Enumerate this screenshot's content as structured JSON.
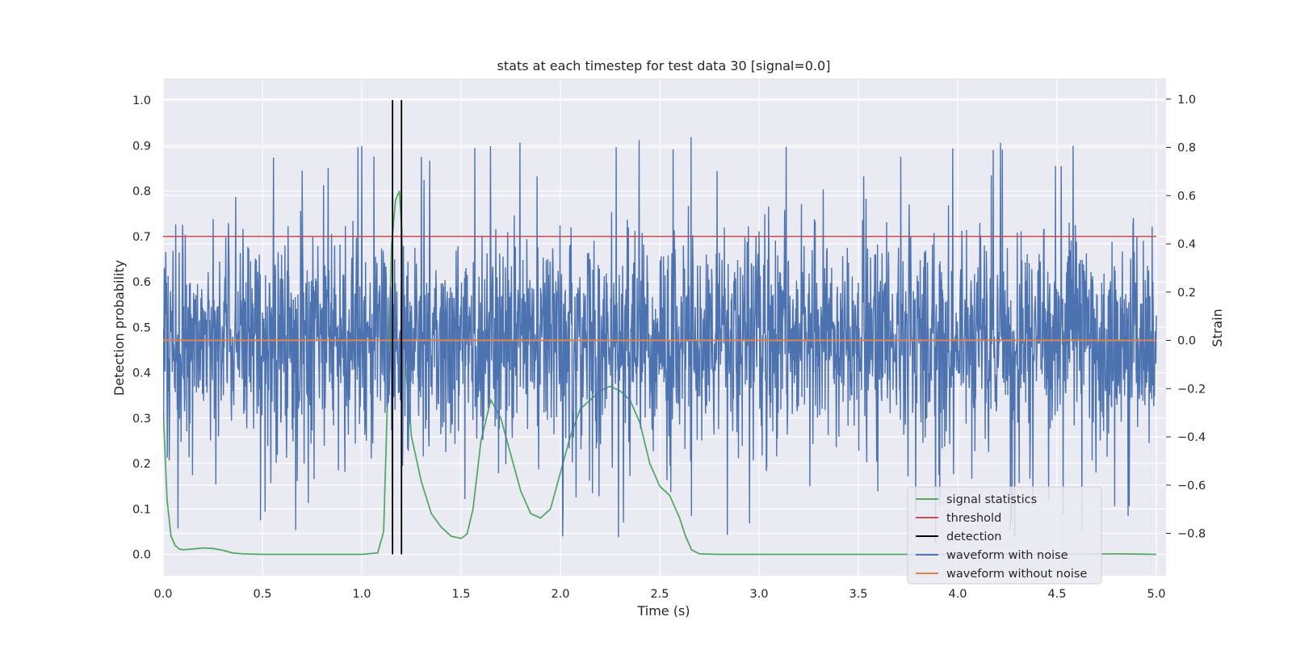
{
  "chart_data": {
    "type": "line",
    "title": "stats at each timestep for test data 30 [signal=0.0]",
    "xlabel": "Time (s)",
    "ylabel_left": "Detection probability",
    "ylabel_right": "Strain",
    "xlim": [
      0.0,
      5.05
    ],
    "ylim_left": [
      -0.05,
      1.05
    ],
    "ylim_right": [
      -0.93,
      1.09
    ],
    "x_ticks": [
      "0.0",
      "0.5",
      "1.0",
      "1.5",
      "2.0",
      "2.5",
      "3.0",
      "3.5",
      "4.0",
      "4.5",
      "5.0"
    ],
    "y_ticks_left": [
      "0.0",
      "0.1",
      "0.2",
      "0.3",
      "0.4",
      "0.5",
      "0.6",
      "0.7",
      "0.8",
      "0.9",
      "1.0"
    ],
    "y_ticks_right": [
      "−0.8",
      "−0.6",
      "−0.4",
      "−0.2",
      "0.0",
      "0.2",
      "0.4",
      "0.6",
      "0.8",
      "1.0"
    ],
    "grid": true,
    "legend_position": "lower-right",
    "series": [
      {
        "name": "signal statistics",
        "axis": "left",
        "color": "#55a868",
        "x": [
          0.0,
          0.02,
          0.04,
          0.06,
          0.08,
          0.1,
          0.15,
          0.2,
          0.25,
          0.3,
          0.35,
          0.4,
          0.5,
          0.7,
          0.9,
          1.0,
          1.08,
          1.11,
          1.13,
          1.15,
          1.17,
          1.19,
          1.2,
          1.22,
          1.25,
          1.3,
          1.35,
          1.4,
          1.45,
          1.5,
          1.53,
          1.56,
          1.6,
          1.65,
          1.7,
          1.75,
          1.8,
          1.85,
          1.9,
          1.95,
          2.0,
          2.05,
          2.1,
          2.15,
          2.2,
          2.25,
          2.3,
          2.35,
          2.4,
          2.45,
          2.5,
          2.55,
          2.6,
          2.63,
          2.66,
          2.7,
          2.8,
          3.0,
          3.5,
          4.0,
          4.5,
          4.8,
          5.0
        ],
        "y": [
          0.32,
          0.12,
          0.04,
          0.02,
          0.012,
          0.01,
          0.012,
          0.014,
          0.013,
          0.009,
          0.003,
          0.001,
          0.0,
          0.0,
          0.0,
          0.0,
          0.003,
          0.05,
          0.35,
          0.68,
          0.78,
          0.8,
          0.72,
          0.42,
          0.26,
          0.16,
          0.09,
          0.06,
          0.04,
          0.035,
          0.045,
          0.1,
          0.25,
          0.34,
          0.3,
          0.22,
          0.14,
          0.09,
          0.08,
          0.1,
          0.18,
          0.26,
          0.32,
          0.34,
          0.36,
          0.37,
          0.36,
          0.34,
          0.29,
          0.2,
          0.15,
          0.13,
          0.08,
          0.04,
          0.01,
          0.001,
          0.0,
          0.0,
          0.0,
          0.0,
          0.0,
          0.001,
          0.0
        ]
      },
      {
        "name": "threshold",
        "axis": "left",
        "color": "#c44e52",
        "x": [
          0.0,
          5.0
        ],
        "y": [
          0.7,
          0.7
        ]
      },
      {
        "name": "detection",
        "axis": "left",
        "color": "#000000",
        "type": "vlines",
        "x": [
          1.155,
          1.2
        ],
        "y_range": [
          0.0,
          1.0
        ]
      },
      {
        "name": "waveform with noise",
        "axis": "right",
        "color": "#4c72b0",
        "x_range": [
          0.0,
          5.0
        ],
        "y_range": [
          -0.88,
          0.88
        ],
        "note_points": "dense noise approx. ±0.35 with spikes to ±0.9"
      },
      {
        "name": "waveform without noise",
        "axis": "right",
        "color": "#dd8452",
        "x": [
          0.0,
          5.0
        ],
        "y": [
          0.0,
          0.0
        ]
      }
    ]
  },
  "legend": {
    "items": [
      {
        "label": "signal statistics",
        "color": "#55a868"
      },
      {
        "label": "threshold",
        "color": "#c44e52"
      },
      {
        "label": "detection",
        "color": "#000000"
      },
      {
        "label": "waveform with noise",
        "color": "#4c72b0"
      },
      {
        "label": "waveform without noise",
        "color": "#dd8452"
      }
    ]
  }
}
